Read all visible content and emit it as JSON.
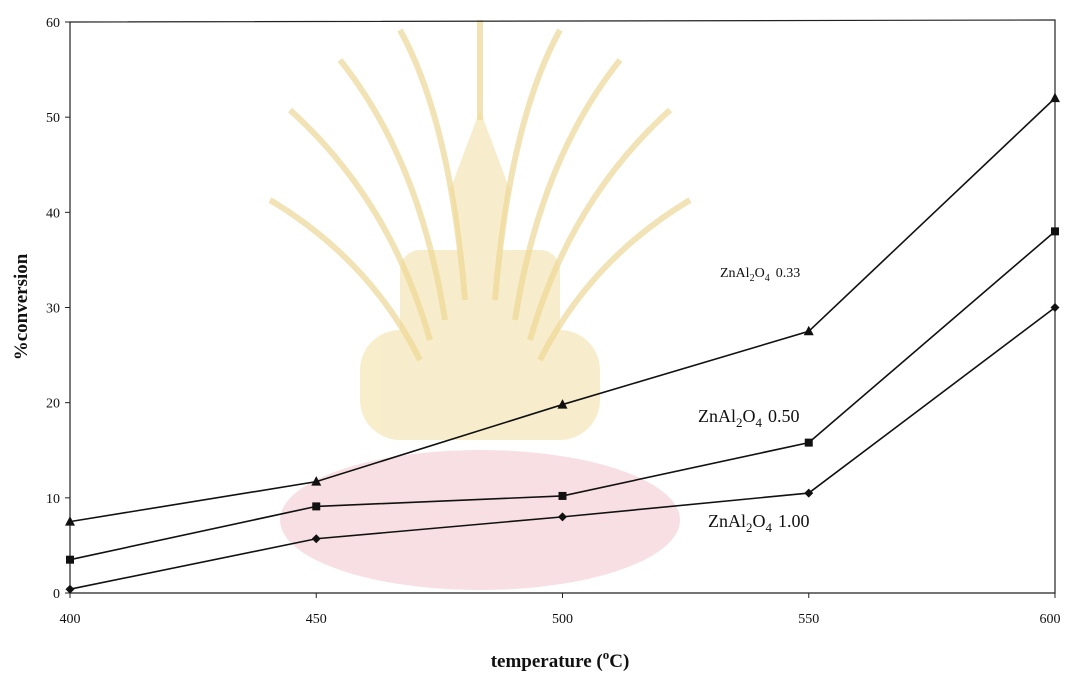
{
  "chart_data": {
    "type": "line",
    "title": "",
    "xlabel": "temperature (°C)",
    "xlabel_parts": {
      "text": "temperature (",
      "sup": "o",
      "tail": "C)"
    },
    "ylabel": "%conversion",
    "x": [
      400,
      450,
      500,
      550,
      600
    ],
    "xlim": [
      400,
      600
    ],
    "ylim": [
      0,
      60
    ],
    "x_ticks": [
      "400",
      "450",
      "500",
      "550",
      "600"
    ],
    "y_ticks": [
      "0",
      "10",
      "20",
      "30",
      "40",
      "50",
      "60"
    ],
    "grid": false,
    "series": [
      {
        "name": "ZnAl2O4 0.33",
        "label": {
          "base": "ZnAl",
          "s1": "2",
          "mid": "O",
          "s2": "4",
          "ratio": "0.33"
        },
        "marker": "triangle",
        "values": [
          7.5,
          11.7,
          19.8,
          27.5,
          52.0
        ]
      },
      {
        "name": "ZnAl2O4 0.50",
        "label": {
          "base": "ZnAl",
          "s1": "2",
          "mid": "O",
          "s2": "4",
          "ratio": "0.50"
        },
        "marker": "square",
        "values": [
          3.5,
          9.1,
          10.2,
          15.8,
          38.0
        ]
      },
      {
        "name": "ZnAl2O4 1.00",
        "label": {
          "base": "ZnAl",
          "s1": "2",
          "mid": "O",
          "s2": "4",
          "ratio": "1.00"
        },
        "marker": "diamond",
        "values": [
          0.4,
          5.7,
          8.0,
          10.5,
          30.0
        ]
      }
    ]
  },
  "colors": {
    "line": "#111111",
    "axis": "#222222",
    "watermark_gold": "#e6c873",
    "watermark_red": "#e8a8b4"
  }
}
